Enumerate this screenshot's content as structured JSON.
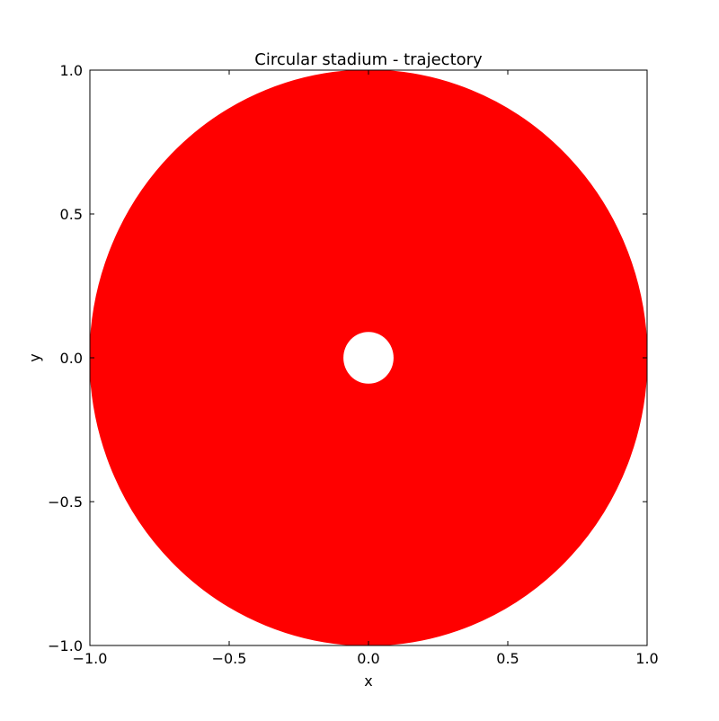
{
  "chart_data": {
    "type": "scatter",
    "title": "Circular stadium - trajectory",
    "xlabel": "x",
    "ylabel": "y",
    "xlim": [
      -1.0,
      1.0
    ],
    "ylim": [
      -1.0,
      1.0
    ],
    "xticks": [
      -1.0,
      -0.5,
      0.0,
      0.5,
      1.0
    ],
    "yticks": [
      -1.0,
      -0.5,
      0.0,
      0.5,
      1.0
    ],
    "xtick_labels": [
      "−1.0",
      "−0.5",
      "0.0",
      "0.5",
      "1.0"
    ],
    "ytick_labels": [
      "−1.0",
      "−0.5",
      "0.0",
      "0.5",
      "1.0"
    ],
    "grid": false,
    "legend": "none",
    "series": [
      {
        "color": "#ff0000",
        "boundary_radius": 1.0,
        "caustic_radius": 0.09,
        "center": [
          0.0,
          0.0
        ]
      }
    ]
  }
}
